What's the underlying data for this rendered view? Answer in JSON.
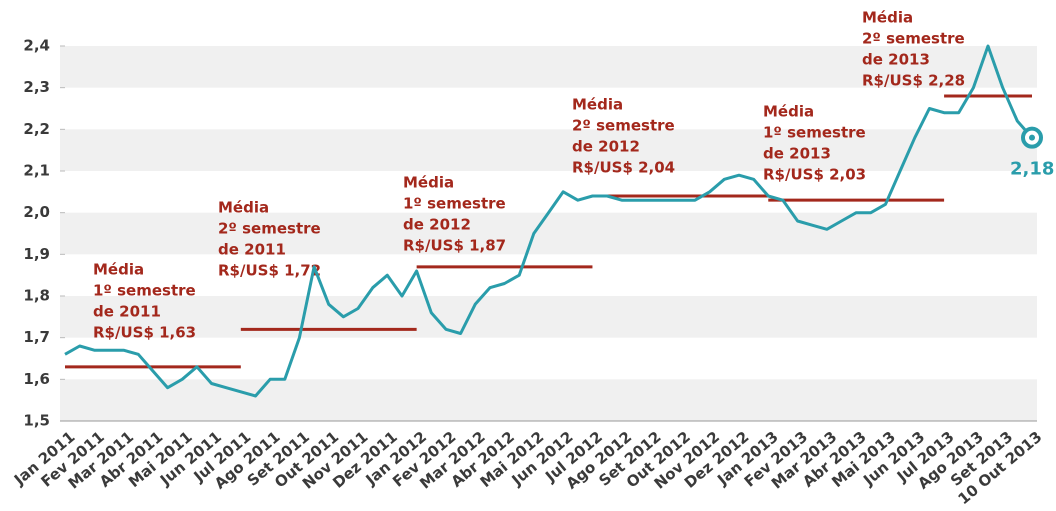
{
  "chart_data": {
    "type": "line",
    "categories": [
      "Jan 2011",
      null,
      "Fev 2011",
      null,
      "Mar 2011",
      null,
      "Abr 2011",
      null,
      "Mai 2011",
      null,
      "Jun 2011",
      null,
      "Jul 2011",
      null,
      "Ago 2011",
      null,
      "Set 2011",
      null,
      "Out 2011",
      null,
      "Nov 2011",
      null,
      "Dez 2011",
      null,
      "Jan 2012",
      null,
      "Fev 2012",
      null,
      "Mar 2012",
      null,
      "Abr 2012",
      null,
      "Mai 2012",
      null,
      "Jun 2012",
      null,
      "Jul 2012",
      null,
      "Ago 2012",
      null,
      "Set 2012",
      null,
      "Out 2012",
      null,
      "Nov 2012",
      null,
      "Dez 2012",
      null,
      "Jan 2013",
      null,
      "Fev 2013",
      null,
      "Mar 2013",
      null,
      "Abr 2013",
      null,
      "Mai 2013",
      null,
      "Jun 2013",
      null,
      "Jul 2013",
      null,
      "Ago 2013",
      null,
      "Set 2013",
      null,
      "10 Out 2013"
    ],
    "series": [
      {
        "color": "#2a9dab",
        "values": [
          1.66,
          1.68,
          1.67,
          1.67,
          1.67,
          1.66,
          1.62,
          1.58,
          1.6,
          1.63,
          1.59,
          1.58,
          1.57,
          1.56,
          1.6,
          1.6,
          1.7,
          1.87,
          1.78,
          1.75,
          1.77,
          1.82,
          1.85,
          1.8,
          1.86,
          1.76,
          1.72,
          1.71,
          1.78,
          1.82,
          1.83,
          1.85,
          1.95,
          2.0,
          2.05,
          2.03,
          2.04,
          2.04,
          2.03,
          2.03,
          2.03,
          2.03,
          2.03,
          2.03,
          2.05,
          2.08,
          2.09,
          2.08,
          2.04,
          2.03,
          1.98,
          1.97,
          1.96,
          1.98,
          2.0,
          2.0,
          2.02,
          2.1,
          2.18,
          2.25,
          2.24,
          2.24,
          2.3,
          2.4,
          2.3,
          2.22,
          2.18
        ],
        "value_labels": [
          null,
          null,
          null,
          null,
          null,
          null,
          null,
          null,
          null,
          null,
          null,
          null,
          null,
          null,
          null,
          null,
          null,
          null,
          null,
          null,
          null,
          null,
          null,
          null,
          null,
          null,
          null,
          null,
          null,
          null,
          null,
          null,
          null,
          null,
          null,
          null,
          null,
          null,
          null,
          null,
          null,
          null,
          null,
          null,
          null,
          null,
          null,
          null,
          null,
          null,
          null,
          null,
          null,
          null,
          null,
          null,
          null,
          null,
          null,
          null,
          null,
          null,
          null,
          null,
          null,
          null,
          "2,18"
        ]
      }
    ],
    "averages": [
      {
        "value": 1.63,
        "color": "#a3281c",
        "label": [
          "Média",
          "1º semestre",
          "de 2011",
          "R$/US$ 1,63"
        ]
      },
      {
        "value": 1.72,
        "color": "#a3281c",
        "label": [
          "Média",
          "2º semestre",
          "de 2011",
          "R$/US$ 1,72"
        ]
      },
      {
        "value": 1.87,
        "color": "#a3281c",
        "label": [
          "Média",
          "1º semestre",
          "de 2012",
          "R$/US$ 1,87"
        ]
      },
      {
        "value": 2.04,
        "color": "#a3281c",
        "label": [
          "Média",
          "2º semestre",
          "de 2012",
          "R$/US$ 2,04"
        ]
      },
      {
        "value": 2.03,
        "color": "#a3281c",
        "label": [
          "Média",
          "1º semestre",
          "de 2013",
          "R$/US$ 2,03"
        ]
      },
      {
        "value": 2.28,
        "color": "#a3281c",
        "label": [
          "Média",
          "2º semestre",
          "de 2013",
          "R$/US$ 2,28"
        ]
      }
    ],
    "ylim": [
      1.5,
      2.4
    ],
    "yticks": [
      {
        "value": 1.5,
        "label": "1,5"
      },
      {
        "value": 1.6,
        "label": "1,6"
      },
      {
        "value": 1.7,
        "label": "1,7"
      },
      {
        "value": 1.8,
        "label": "1,8"
      },
      {
        "value": 1.9,
        "label": "1,9"
      },
      {
        "value": 2.0,
        "label": "2,0"
      },
      {
        "value": 2.1,
        "label": "2,1"
      },
      {
        "value": 2.2,
        "label": "2,2"
      },
      {
        "value": 2.3,
        "label": "2,3"
      },
      {
        "value": 2.4,
        "label": "2,4"
      }
    ],
    "grid": "bands"
  }
}
